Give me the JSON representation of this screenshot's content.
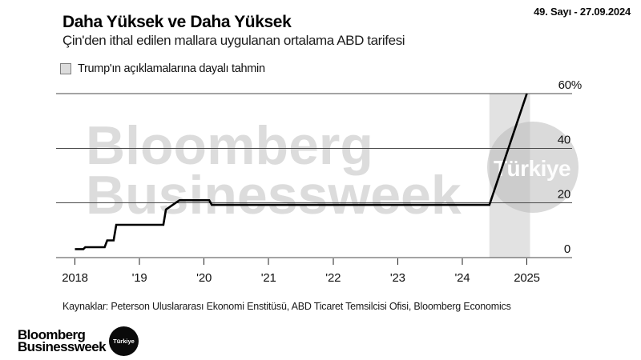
{
  "header": {
    "issue_date": "49. Sayı - 27.09.2024",
    "title": "Daha Yüksek ve Daha Yüksek",
    "subtitle": "Çin'den ithal edilen mallara uygulanan ortalama ABD tarifesi",
    "legend": {
      "label": "Trump'ın açıklamalarına dayalı tahmin",
      "swatch_color": "#dcdcdc"
    }
  },
  "chart_data": {
    "type": "line",
    "title": "Daha Yüksek ve Daha Yüksek",
    "subtitle": "Çin'den ithal edilen mallara uygulanan ortalama ABD tarifesi",
    "unit": "%",
    "ylim": [
      0,
      60
    ],
    "xlim": [
      2017.7,
      2025.7
    ],
    "grid": true,
    "legend_position": "top-left",
    "y_ticks": [
      {
        "value": 0,
        "label": "0"
      },
      {
        "value": 20,
        "label": "20"
      },
      {
        "value": 40,
        "label": "40"
      },
      {
        "value": 60,
        "label": "60%"
      }
    ],
    "x_ticks": [
      {
        "year": 2018,
        "label": "2018"
      },
      {
        "year": 2019,
        "label": "'19"
      },
      {
        "year": 2020,
        "label": "'20"
      },
      {
        "year": 2021,
        "label": "'21"
      },
      {
        "year": 2022,
        "label": "'22"
      },
      {
        "year": 2023,
        "label": "'23"
      },
      {
        "year": 2024,
        "label": "'24"
      },
      {
        "year": 2025,
        "label": "2025"
      }
    ],
    "series_name": "Çin'den ithal edilen mallara uygulanan ortalama ABD tarifesi (%)",
    "points": [
      [
        2018.0,
        3.1
      ],
      [
        2018.13,
        3.1
      ],
      [
        2018.16,
        3.8
      ],
      [
        2018.46,
        3.8
      ],
      [
        2018.5,
        6.3
      ],
      [
        2018.6,
        6.3
      ],
      [
        2018.64,
        12.0
      ],
      [
        2019.37,
        12.0
      ],
      [
        2019.41,
        17.6
      ],
      [
        2019.62,
        21.0
      ],
      [
        2020.08,
        21.0
      ],
      [
        2020.12,
        19.3
      ],
      [
        2024.42,
        19.3
      ],
      [
        2025.0,
        60.0
      ]
    ],
    "forecast_band": {
      "from_year": 2024.42,
      "to_year": 2025.05,
      "label": "Trump'ın açıklamalarına dayalı tahmin"
    }
  },
  "watermark": {
    "line1": "Bloomberg",
    "line2": "Businessweek",
    "badge": "Türkiye"
  },
  "footer": {
    "sources": "Kaynaklar: Peterson Uluslararası Ekonomi Enstitüsü, ABD Ticaret Temsilcisi Ofisi, Bloomberg Economics",
    "logo_line1": "Bloomberg",
    "logo_line2": "Businessweek",
    "logo_badge": "Türkiye"
  },
  "colors": {
    "line": "#000000",
    "grid": "#4a4a4a",
    "axis_text": "#111111",
    "forecast_band": "#e2e2e2",
    "watermark_text": "#dcdcdc",
    "watermark_circle": "#b5b5b5",
    "badge_bg": "#0a0a0a"
  }
}
